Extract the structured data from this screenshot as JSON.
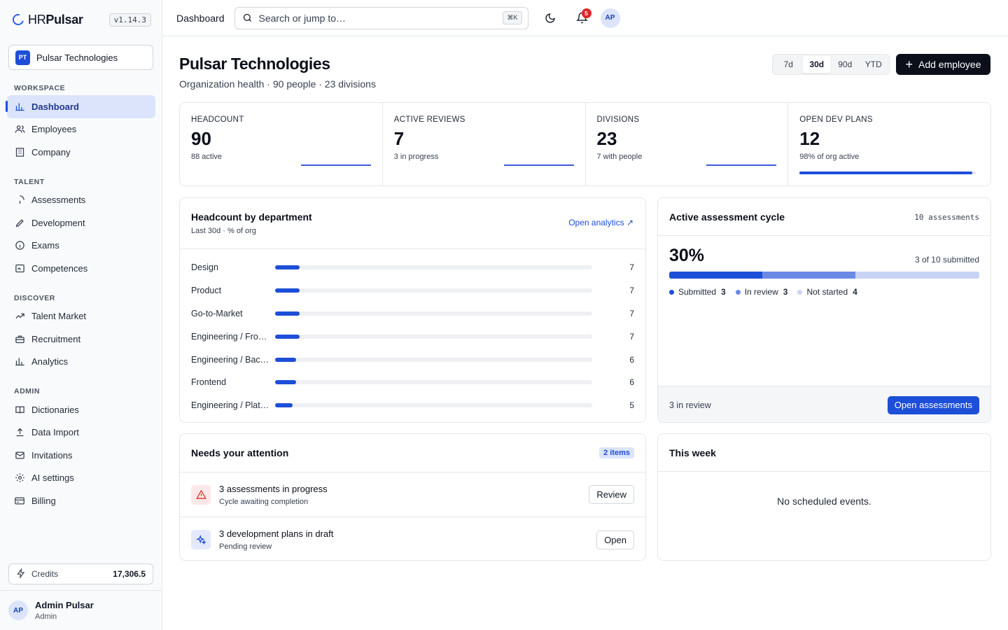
{
  "brand": {
    "prefix": "HR",
    "name": "Pulsar",
    "version": "v1.14.3"
  },
  "org": {
    "initials": "PT",
    "name": "Pulsar Technologies"
  },
  "nav": {
    "sections": [
      {
        "title": "WORKSPACE",
        "items": [
          {
            "label": "Dashboard",
            "icon": "bar-chart-icon",
            "active": true
          },
          {
            "label": "Employees",
            "icon": "users-icon"
          },
          {
            "label": "Company",
            "icon": "building-icon"
          }
        ]
      },
      {
        "title": "TALENT",
        "items": [
          {
            "label": "Assessments",
            "icon": "loader-icon"
          },
          {
            "label": "Development",
            "icon": "pencil-icon"
          },
          {
            "label": "Exams",
            "icon": "info-icon"
          },
          {
            "label": "Competences",
            "icon": "image-icon"
          }
        ]
      },
      {
        "title": "DISCOVER",
        "items": [
          {
            "label": "Talent Market",
            "icon": "trending-up-icon"
          },
          {
            "label": "Recruitment",
            "icon": "briefcase-icon"
          },
          {
            "label": "Analytics",
            "icon": "bar-chart-icon"
          }
        ]
      },
      {
        "title": "ADMIN",
        "items": [
          {
            "label": "Dictionaries",
            "icon": "book-icon"
          },
          {
            "label": "Data Import",
            "icon": "upload-icon"
          },
          {
            "label": "Invitations",
            "icon": "mail-icon"
          },
          {
            "label": "AI settings",
            "icon": "gear-icon"
          },
          {
            "label": "Billing",
            "icon": "credit-card-icon"
          }
        ]
      }
    ]
  },
  "credits": {
    "label": "Credits",
    "value": "17,306.5"
  },
  "user": {
    "initials": "AP",
    "name": "Admin Pulsar",
    "role": "Admin"
  },
  "topbar": {
    "breadcrumb": "Dashboard",
    "search_placeholder": "Search or jump to…",
    "shortcut": "⌘K",
    "notifications": "5",
    "avatar": "AP"
  },
  "header": {
    "title": "Pulsar Technologies",
    "subtitle": "Organization health · 90 people · 23 divisions",
    "ranges": [
      "7d",
      "30d",
      "90d",
      "YTD"
    ],
    "active_range": "30d",
    "add_label": "Add employee"
  },
  "kpis": [
    {
      "label": "HEADCOUNT",
      "value": "90",
      "sub": "88 active"
    },
    {
      "label": "ACTIVE REVIEWS",
      "value": "7",
      "sub": "3 in progress"
    },
    {
      "label": "DIVISIONS",
      "value": "23",
      "sub": "7 with people"
    },
    {
      "label": "OPEN DEV PLANS",
      "value": "12",
      "sub": "98% of org active",
      "progress": 0.98
    }
  ],
  "department": {
    "title": "Headcount by department",
    "subtitle": "Last 30d · % of org",
    "link": "Open analytics",
    "max": 90,
    "rows": [
      {
        "name": "Design",
        "value": 7
      },
      {
        "name": "Product",
        "value": 7
      },
      {
        "name": "Go-to-Market",
        "value": 7
      },
      {
        "name": "Engineering / Fro…",
        "value": 7
      },
      {
        "name": "Engineering / Bac…",
        "value": 6
      },
      {
        "name": "Frontend",
        "value": 6
      },
      {
        "name": "Engineering / Plat…",
        "value": 5
      }
    ]
  },
  "cycle": {
    "title": "Active assessment cycle",
    "count": "10 assessments",
    "percent": "30%",
    "submitted_text": "3 of 10 submitted",
    "total": 10,
    "segments": [
      {
        "label": "Submitted",
        "value": 3,
        "color": "#1d4ed8"
      },
      {
        "label": "In review",
        "value": 3,
        "color": "#6b8ae6"
      },
      {
        "label": "Not started",
        "value": 4,
        "color": "#c9d4f5"
      }
    ],
    "footer_info": "3 in review",
    "button": "Open assessments"
  },
  "attention": {
    "title": "Needs your attention",
    "badge": "2 items",
    "items": [
      {
        "title": "3 assessments in progress",
        "sub": "Cycle awaiting completion",
        "action": "Review",
        "icon": "warning-icon"
      },
      {
        "title": "3 development plans in draft",
        "sub": "Pending review",
        "action": "Open",
        "icon": "sparkle-icon"
      }
    ]
  },
  "week": {
    "title": "This week",
    "empty": "No scheduled events."
  }
}
